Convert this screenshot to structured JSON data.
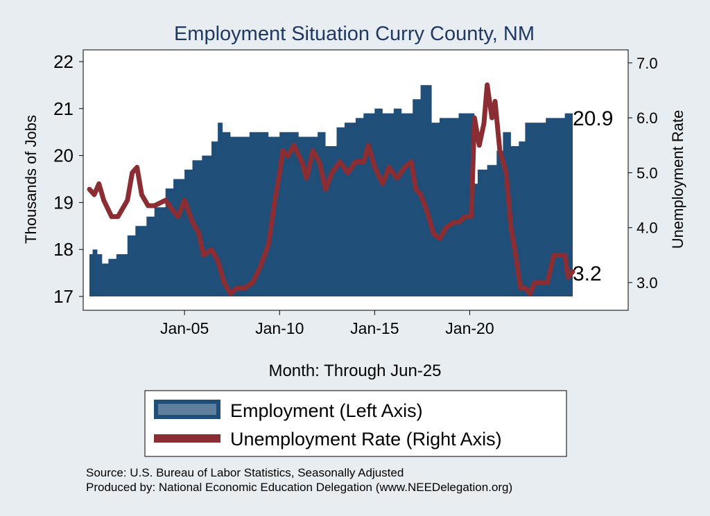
{
  "chart_data": {
    "type": "area",
    "title": "Employment Situation Curry  County, NM",
    "xlabel": "Month: Through Jun-25",
    "ylabel_left": "Thousands of Jobs",
    "ylabel_right": "Unemployment Rate",
    "x_range": [
      "Jan-00",
      "Jun-25"
    ],
    "x_ticks": [
      {
        "label": "Jan-05",
        "date": "2005-01"
      },
      {
        "label": "Jan-10",
        "date": "2010-01"
      },
      {
        "label": "Jan-15",
        "date": "2015-01"
      },
      {
        "label": "Jan-20",
        "date": "2020-01"
      }
    ],
    "ylim_left": [
      17,
      22
    ],
    "yticks_left": [
      "17",
      "18",
      "19",
      "20",
      "21",
      "22"
    ],
    "ylim_right": [
      2.5,
      7.0
    ],
    "yticks_right": [
      "3.0",
      "4.0",
      "5.0",
      "6.0",
      "7.0"
    ],
    "grid": false,
    "legend_placement": "bottom",
    "colors": {
      "employment": "#1f4e79",
      "unemployment": "#8b2e34",
      "background": "#e8edf1",
      "plot_background": "#ffffff",
      "title": "#1f3864"
    },
    "series": [
      {
        "name": "Employment (Left Axis)",
        "axis": "left",
        "kind": "area",
        "points": [
          [
            "2000-01",
            17.9
          ],
          [
            "2000-03",
            18.0
          ],
          [
            "2000-06",
            17.9
          ],
          [
            "2000-09",
            17.7
          ],
          [
            "2001-01",
            17.8
          ],
          [
            "2001-06",
            17.9
          ],
          [
            "2002-01",
            18.3
          ],
          [
            "2002-06",
            18.5
          ],
          [
            "2003-01",
            18.7
          ],
          [
            "2003-06",
            18.9
          ],
          [
            "2004-01",
            19.3
          ],
          [
            "2004-06",
            19.5
          ],
          [
            "2005-01",
            19.7
          ],
          [
            "2005-06",
            19.9
          ],
          [
            "2005-12",
            20.0
          ],
          [
            "2006-06",
            20.3
          ],
          [
            "2006-10",
            20.7
          ],
          [
            "2007-01",
            20.5
          ],
          [
            "2007-06",
            20.4
          ],
          [
            "2008-01",
            20.4
          ],
          [
            "2008-06",
            20.5
          ],
          [
            "2009-01",
            20.5
          ],
          [
            "2009-06",
            20.4
          ],
          [
            "2010-01",
            20.5
          ],
          [
            "2010-06",
            20.5
          ],
          [
            "2011-01",
            20.4
          ],
          [
            "2011-06",
            20.4
          ],
          [
            "2012-01",
            20.5
          ],
          [
            "2012-06",
            20.2
          ],
          [
            "2013-01",
            20.6
          ],
          [
            "2013-06",
            20.7
          ],
          [
            "2014-01",
            20.8
          ],
          [
            "2014-06",
            20.9
          ],
          [
            "2015-01",
            21.0
          ],
          [
            "2015-06",
            20.9
          ],
          [
            "2016-01",
            21.0
          ],
          [
            "2016-06",
            20.9
          ],
          [
            "2017-01",
            21.2
          ],
          [
            "2017-06",
            21.5
          ],
          [
            "2017-10",
            21.5
          ],
          [
            "2018-01",
            20.7
          ],
          [
            "2018-06",
            20.8
          ],
          [
            "2019-01",
            20.8
          ],
          [
            "2019-06",
            20.9
          ],
          [
            "2019-12",
            20.9
          ],
          [
            "2020-04",
            19.4
          ],
          [
            "2020-06",
            19.7
          ],
          [
            "2020-12",
            19.8
          ],
          [
            "2021-06",
            20.1
          ],
          [
            "2021-10",
            20.5
          ],
          [
            "2022-03",
            20.2
          ],
          [
            "2022-08",
            20.3
          ],
          [
            "2022-12",
            20.7
          ],
          [
            "2023-06",
            20.7
          ],
          [
            "2024-01",
            20.8
          ],
          [
            "2024-06",
            20.8
          ],
          [
            "2025-01",
            20.9
          ],
          [
            "2025-06",
            20.9
          ]
        ]
      },
      {
        "name": "Unemployment Rate (Right Axis)",
        "axis": "right",
        "kind": "line",
        "points": [
          [
            "2000-01",
            4.7
          ],
          [
            "2000-04",
            4.6
          ],
          [
            "2000-07",
            4.8
          ],
          [
            "2000-10",
            4.5
          ],
          [
            "2001-03",
            4.2
          ],
          [
            "2001-07",
            4.2
          ],
          [
            "2002-01",
            4.5
          ],
          [
            "2002-04",
            5.0
          ],
          [
            "2002-07",
            5.1
          ],
          [
            "2002-10",
            4.6
          ],
          [
            "2003-02",
            4.4
          ],
          [
            "2003-06",
            4.4
          ],
          [
            "2004-01",
            4.5
          ],
          [
            "2004-06",
            4.3
          ],
          [
            "2004-09",
            4.2
          ],
          [
            "2005-01",
            4.5
          ],
          [
            "2005-06",
            4.1
          ],
          [
            "2005-10",
            3.9
          ],
          [
            "2006-01",
            3.5
          ],
          [
            "2006-06",
            3.6
          ],
          [
            "2006-10",
            3.4
          ],
          [
            "2007-02",
            3.0
          ],
          [
            "2007-06",
            2.8
          ],
          [
            "2007-10",
            2.9
          ],
          [
            "2008-03",
            2.9
          ],
          [
            "2008-08",
            3.0
          ],
          [
            "2009-01",
            3.3
          ],
          [
            "2009-06",
            3.7
          ],
          [
            "2009-10",
            4.5
          ],
          [
            "2010-01",
            5.0
          ],
          [
            "2010-03",
            5.4
          ],
          [
            "2010-06",
            5.3
          ],
          [
            "2010-10",
            5.5
          ],
          [
            "2011-03",
            5.2
          ],
          [
            "2011-06",
            4.9
          ],
          [
            "2011-10",
            5.4
          ],
          [
            "2012-02",
            5.2
          ],
          [
            "2012-06",
            4.7
          ],
          [
            "2012-10",
            5.0
          ],
          [
            "2013-03",
            5.2
          ],
          [
            "2013-08",
            5.0
          ],
          [
            "2014-01",
            5.2
          ],
          [
            "2014-06",
            5.2
          ],
          [
            "2014-09",
            5.5
          ],
          [
            "2015-01",
            5.1
          ],
          [
            "2015-06",
            4.8
          ],
          [
            "2015-10",
            5.1
          ],
          [
            "2016-03",
            4.9
          ],
          [
            "2016-08",
            5.1
          ],
          [
            "2016-12",
            5.2
          ],
          [
            "2017-03",
            4.7
          ],
          [
            "2017-06",
            4.6
          ],
          [
            "2017-10",
            4.3
          ],
          [
            "2018-02",
            3.9
          ],
          [
            "2018-06",
            3.8
          ],
          [
            "2018-10",
            4.0
          ],
          [
            "2019-03",
            4.1
          ],
          [
            "2019-06",
            4.1
          ],
          [
            "2019-10",
            4.2
          ],
          [
            "2020-02",
            4.2
          ],
          [
            "2020-04",
            6.0
          ],
          [
            "2020-07",
            5.5
          ],
          [
            "2020-10",
            5.9
          ],
          [
            "2020-12",
            6.6
          ],
          [
            "2021-03",
            6.0
          ],
          [
            "2021-05",
            6.3
          ],
          [
            "2021-08",
            5.4
          ],
          [
            "2021-12",
            5.0
          ],
          [
            "2022-03",
            4.0
          ],
          [
            "2022-06",
            3.5
          ],
          [
            "2022-09",
            2.9
          ],
          [
            "2022-12",
            2.9
          ],
          [
            "2023-03",
            2.8
          ],
          [
            "2023-06",
            3.0
          ],
          [
            "2023-10",
            3.0
          ],
          [
            "2024-02",
            3.0
          ],
          [
            "2024-06",
            3.5
          ],
          [
            "2024-09",
            3.5
          ],
          [
            "2025-01",
            3.5
          ],
          [
            "2025-03",
            3.1
          ],
          [
            "2025-06",
            3.2
          ]
        ]
      }
    ],
    "annotations": [
      {
        "text": "20.9",
        "series": "Employment (Left Axis)"
      },
      {
        "text": "3.2",
        "series": "Unemployment Rate (Right Axis)"
      }
    ]
  },
  "legend": {
    "employment_label": "Employment (Left Axis)",
    "unemployment_label": "Unemployment Rate (Right Axis)"
  },
  "footer": {
    "source": "Source: U.S. Bureau of Labor Statistics, Seasonally Adjusted",
    "produced_by": "Produced by: National Economic Education Delegation (www.NEEDelegation.org)"
  }
}
